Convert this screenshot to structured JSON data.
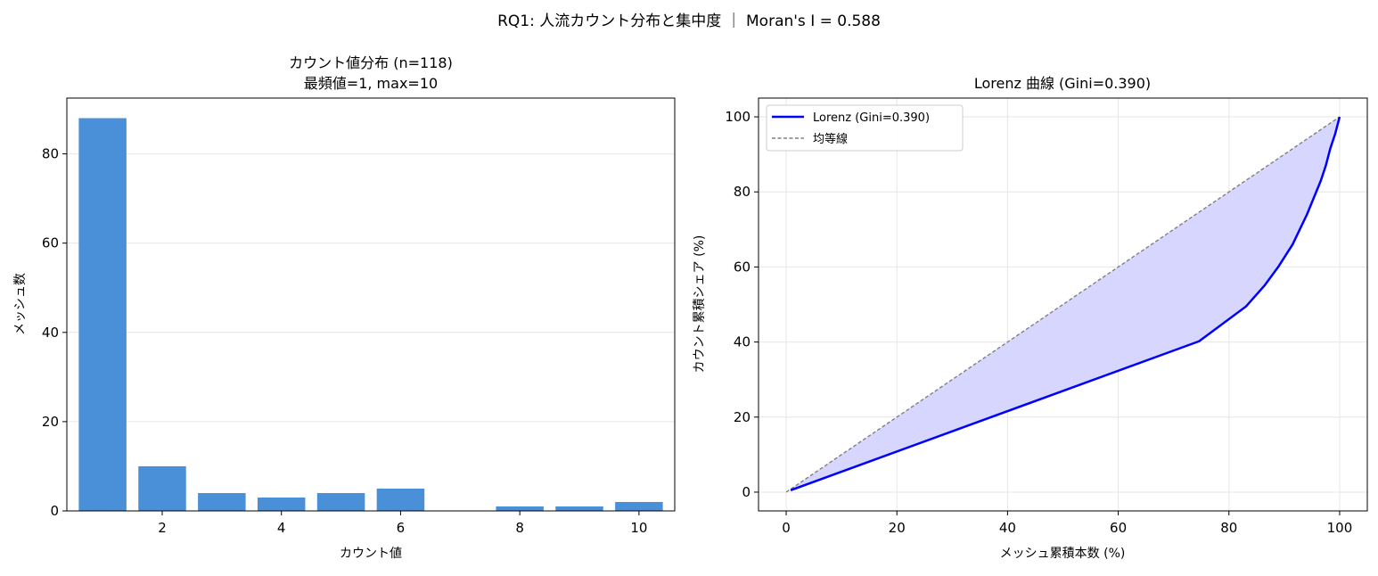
{
  "figure": {
    "suptitle": "RQ1: 人流カウント分布と集中度 ｜ Moran's I = 0.588"
  },
  "chart_data": [
    {
      "type": "bar",
      "title_line1": "カウント値分布 (n=118)",
      "title_line2": "最頻値=1, max=10",
      "xlabel": "カウント値",
      "ylabel": "メッシュ数",
      "categories": [
        1,
        2,
        3,
        4,
        5,
        6,
        8,
        9,
        10
      ],
      "values": [
        88,
        10,
        4,
        3,
        4,
        5,
        1,
        1,
        2
      ],
      "xlim": [
        0.4,
        10.6
      ],
      "ylim": [
        0,
        92.5
      ],
      "xticks": [
        2,
        4,
        6,
        8,
        10
      ],
      "yticks": [
        0,
        20,
        40,
        60,
        80
      ],
      "grid": "y",
      "bar_color": "#4a90d9"
    },
    {
      "type": "line",
      "title": "Lorenz 曲線 (Gini=0.390)",
      "xlabel": "メッシュ累積本数 (%)",
      "ylabel": "カウント累積シェア (%)",
      "xlim": [
        -5,
        105
      ],
      "ylim": [
        -5,
        105
      ],
      "xticks": [
        0,
        20,
        40,
        60,
        80,
        100
      ],
      "yticks": [
        0,
        20,
        40,
        60,
        80,
        100
      ],
      "grid": "both",
      "legend": "top-left",
      "series": [
        {
          "name": "Lorenz (Gini=0.390)",
          "color": "#0000ff",
          "style": "solid",
          "x": [
            0.8,
            74.6,
            83.1,
            86.4,
            88.9,
            91.5,
            94.1,
            96.6,
            97.5,
            98.3,
            99.2,
            100
          ],
          "y": [
            0.5,
            40.2,
            49.5,
            55.0,
            60.0,
            66.0,
            74.0,
            83.0,
            87.0,
            91.5,
            95.5,
            100
          ]
        },
        {
          "name": "均等線",
          "color": "#808080",
          "style": "dashed",
          "x": [
            0,
            100
          ],
          "y": [
            0,
            100
          ]
        }
      ],
      "fill_between_color": "#d6d6ff"
    }
  ]
}
